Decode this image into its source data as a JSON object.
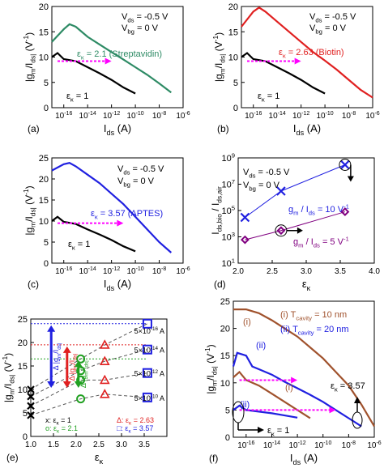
{
  "chart_data": [
    {
      "id": "a",
      "type": "line",
      "panel_label": "(a)",
      "xlabel": "I_ds (A)",
      "ylabel": "|g_m/I_ds| (V^-1)",
      "xscale": "log",
      "xlim": [
        1e-17,
        1e-06
      ],
      "ylim": [
        0,
        20
      ],
      "xticks": [
        "10^-16",
        "10^-14",
        "10^-12",
        "10^-10",
        "10^-8",
        "10^-6"
      ],
      "yticks": [
        "0",
        "5",
        "10",
        "15",
        "20"
      ],
      "annotations": [
        "V_ds = -0.5 V",
        "V_bg = 0 V"
      ],
      "series": [
        {
          "name": "ε_κ = 2.1 (Streptavidin)",
          "color": "#2e8b65",
          "x": [
            1e-17,
            1e-16,
            3e-16,
            1e-15,
            1e-14,
            1e-13,
            1e-12,
            1e-11,
            1e-10,
            1e-09,
            1e-08,
            1e-07
          ],
          "y": [
            13,
            15.5,
            16.5,
            16,
            14,
            12.5,
            11,
            9.5,
            8,
            6.5,
            4.8,
            3
          ]
        },
        {
          "name": "ε_κ = 1",
          "color": "#000000",
          "x": [
            1e-17,
            3e-17,
            1e-16,
            1e-15,
            1e-14,
            1e-13,
            1e-12,
            1e-11,
            1e-10
          ],
          "y": [
            10,
            10.8,
            9.6,
            9.2,
            8,
            6.8,
            5.5,
            4,
            2.8
          ]
        }
      ],
      "arrow": {
        "color": "#ff00ff",
        "x": [
          3e-17,
          1e-12
        ],
        "y": [
          9.2,
          9.2
        ]
      }
    },
    {
      "id": "b",
      "type": "line",
      "panel_label": "(b)",
      "xlabel": "I_ds (A)",
      "ylabel": "|g_m/I_ds| (V^-1)",
      "xscale": "log",
      "xlim": [
        1e-17,
        1e-06
      ],
      "ylim": [
        0,
        20
      ],
      "xticks": [
        "10^-16",
        "10^-14",
        "10^-12",
        "10^-10",
        "10^-8",
        "10^-6"
      ],
      "yticks": [
        "0",
        "5",
        "10",
        "15",
        "20"
      ],
      "annotations": [
        "V_ds = -0.5 V",
        "V_bg = 0 V"
      ],
      "series": [
        {
          "name": "ε_κ = 2.63 (Biotin)",
          "color": "#e02020",
          "x": [
            1e-17,
            1e-16,
            3e-16,
            1e-15,
            1e-14,
            1e-13,
            1e-12,
            1e-11,
            1e-10,
            1e-09,
            1e-08,
            1e-07,
            1e-06
          ],
          "y": [
            16,
            19,
            19.8,
            19,
            17,
            15,
            13,
            11,
            9.3,
            7.5,
            5.5,
            3.5,
            2
          ]
        },
        {
          "name": "ε_κ = 1",
          "color": "#000000",
          "x": [
            1e-17,
            3e-17,
            1e-16,
            1e-15,
            1e-14,
            1e-13,
            1e-12,
            1e-11,
            1e-10
          ],
          "y": [
            10,
            10.8,
            9.6,
            9.2,
            8,
            6.8,
            5.5,
            4,
            2.8
          ]
        }
      ],
      "arrow": {
        "color": "#ff00ff",
        "x": [
          3e-17,
          1e-12
        ],
        "y": [
          9.2,
          9.2
        ]
      }
    },
    {
      "id": "c",
      "type": "line",
      "panel_label": "(c)",
      "xlabel": "I_ds (A)",
      "ylabel": "|g_m/I_ds| (V^-1)",
      "xscale": "log",
      "xlim": [
        1e-17,
        1e-06
      ],
      "ylim": [
        0,
        25
      ],
      "xticks": [
        "10^-16",
        "10^-14",
        "10^-12",
        "10^-10",
        "10^-8",
        "10^-6"
      ],
      "yticks": [
        "0",
        "5",
        "10",
        "15",
        "20",
        "25"
      ],
      "annotations": [
        "V_ds = -0.5 V",
        "V_bg = 0 V"
      ],
      "series": [
        {
          "name": "ε_κ = 3.57 (APTES)",
          "color": "#2020e0",
          "x": [
            1e-17,
            1e-16,
            3e-16,
            1e-15,
            1e-14,
            1e-13,
            1e-12,
            1e-11,
            1e-10,
            1e-09,
            1e-08,
            1e-07
          ],
          "y": [
            22,
            23.5,
            23.8,
            23,
            21,
            19,
            16.5,
            14,
            11,
            8,
            5,
            2.5
          ]
        },
        {
          "name": "ε_κ = 1",
          "color": "#000000",
          "x": [
            1e-17,
            3e-17,
            1e-16,
            1e-15,
            1e-14,
            1e-13,
            1e-12,
            1e-11,
            1e-10
          ],
          "y": [
            10,
            11,
            9.8,
            9.3,
            8,
            6.8,
            5.5,
            4,
            2.8
          ]
        }
      ],
      "arrow": {
        "color": "#ff00ff",
        "x": [
          3e-17,
          1e-11
        ],
        "y": [
          9.5,
          9.5
        ]
      }
    },
    {
      "id": "d",
      "type": "scatter",
      "panel_label": "(d)",
      "xlabel": "ε_κ",
      "ylabel": "I_ds,bio / I_ds,air",
      "yscale": "log",
      "xlim": [
        2.0,
        4.0
      ],
      "ylim": [
        10.0,
        1000000000.0
      ],
      "xticks": [
        "2.0",
        "2.5",
        "3.0",
        "3.5",
        "4.0"
      ],
      "yticks": [
        "10^1",
        "10^3",
        "10^5",
        "10^7",
        "10^9"
      ],
      "annotations": [
        "V_ds = -0.5 V",
        "V_bg = 0 V"
      ],
      "series": [
        {
          "name": "g_m / I_ds = 10 V^-1",
          "color": "#2020e0",
          "marker": "x",
          "x": [
            2.1,
            2.63,
            3.57
          ],
          "y": [
            30000.0,
            3000000.0,
            300000000.0
          ]
        },
        {
          "name": "g_m / I_ds = 5 V^-1",
          "color": "#800080",
          "marker": "diamond",
          "x": [
            2.1,
            2.63,
            3.57
          ],
          "y": [
            600.0,
            3000.0,
            80000.0
          ]
        }
      ]
    },
    {
      "id": "e",
      "type": "scatter",
      "panel_label": "(e)",
      "xlabel": "ε_κ",
      "ylabel": "|g_m/I_ds| (V^-1)",
      "xlim": [
        1.0,
        4.0
      ],
      "ylim": [
        0,
        25
      ],
      "xticks": [
        "1.0",
        "1.5",
        "2.0",
        "2.5",
        "3.0",
        "3.5"
      ],
      "yticks": [
        "0",
        "5",
        "10",
        "15",
        "20",
        "25"
      ],
      "current_labels": [
        "5×10^-16 A",
        "5×10^-14 A",
        "5×10^-12 A",
        "5×10^-10 A"
      ],
      "delta_labels": [
        "Δ |g_m/I_ds|",
        "Δ |g_m/I_ds|",
        "Δ |g_m/I_ds|"
      ],
      "legend": [
        "x: ε_κ = 1",
        "o: ε_κ = 2.1",
        "Δ: ε_κ = 2.63",
        "□: ε_κ = 3.57"
      ],
      "series": [
        {
          "name": "ε_κ = 1",
          "color": "#000000",
          "marker": "x",
          "x": [
            1,
            1,
            1,
            1
          ],
          "y": [
            10,
            8.5,
            6.5,
            4.5
          ]
        },
        {
          "name": "ε_κ = 2.1",
          "color": "#20a020",
          "marker": "circle",
          "x": [
            2.1,
            2.1,
            2.1,
            2.1
          ],
          "y": [
            16.5,
            14,
            12,
            8
          ]
        },
        {
          "name": "ε_κ = 2.63",
          "color": "#e02020",
          "marker": "triangle",
          "x": [
            2.63,
            2.63,
            2.63,
            2.63
          ],
          "y": [
            19.5,
            16,
            12,
            9
          ]
        },
        {
          "name": "ε_κ = 3.57",
          "color": "#2020e0",
          "marker": "square",
          "x": [
            3.57,
            3.57,
            3.57,
            3.57
          ],
          "y": [
            24,
            18.5,
            13.5,
            8.3
          ]
        }
      ]
    },
    {
      "id": "f",
      "type": "line",
      "panel_label": "(f)",
      "xlabel": "I_ds (A)",
      "ylabel": "|g_m/I_ds| (V^-1)",
      "xscale": "log",
      "xlim": [
        1e-17,
        1e-06
      ],
      "ylim": [
        0,
        25
      ],
      "xticks": [
        "10^-16",
        "10^-14",
        "10^-12",
        "10^-10",
        "10^-8",
        "10^-6"
      ],
      "yticks": [
        "0",
        "5",
        "10",
        "15",
        "20",
        "25"
      ],
      "annotations": [
        "(i) T_cavity = 10 nm",
        "(ii) T_cavity = 20 nm"
      ],
      "series": [
        {
          "name": "(i) ε_κ = 3.57",
          "color": "#a0522d",
          "x": [
            1e-17,
            1e-16,
            1e-15,
            1e-14,
            1e-13,
            1e-12,
            1e-11,
            1e-10,
            1e-09,
            1e-08,
            1e-07,
            1e-06
          ],
          "y": [
            23.5,
            23.5,
            22.8,
            21.5,
            20,
            18.5,
            16.5,
            14.5,
            12,
            9.5,
            6,
            2
          ]
        },
        {
          "name": "(ii) ε_κ = 3.57",
          "color": "#2020e0",
          "x": [
            1e-17,
            2e-17,
            1e-16,
            3e-16,
            1e-15,
            1e-14,
            1e-13,
            1e-12,
            1e-11,
            1e-10,
            1e-09,
            1e-08,
            1e-07
          ],
          "y": [
            13,
            15.5,
            15,
            13,
            12.5,
            11.5,
            10.2,
            9,
            7.8,
            6.5,
            5,
            3.5,
            2
          ]
        },
        {
          "name": "(i) ε_κ = 1",
          "color": "#a0522d",
          "x": [
            1e-17,
            3e-17,
            1e-16,
            1e-15,
            1e-14,
            1e-13,
            1e-12,
            1e-11
          ],
          "y": [
            11,
            12,
            10.5,
            9.5,
            8,
            6.5,
            5,
            3.5
          ]
        },
        {
          "name": "(ii) ε_κ = 1",
          "color": "#2020e0",
          "x": [
            1e-17,
            3e-17,
            1e-16,
            1e-15,
            1e-14,
            1e-13,
            1e-12
          ],
          "y": [
            5,
            5.8,
            5,
            4.7,
            4.4,
            4,
            3.6
          ]
        }
      ],
      "curve_labels": [
        "(i)",
        "(ii)",
        "(i)",
        "(ii)",
        "ε_κ = 3.57",
        "ε_κ = 1"
      ],
      "arrows": [
        {
          "color": "#ff00ff",
          "x": [
            3e-17,
            1e-12
          ],
          "y": [
            10.5,
            10.5
          ]
        },
        {
          "color": "#ff00ff",
          "x": [
            3e-17,
            1e-09
          ],
          "y": [
            5,
            5
          ]
        }
      ]
    }
  ],
  "panel_a": {
    "vds": "V",
    "vds_val": "ds",
    "eq": "= -0.5 V",
    "vbg_val": "bg",
    "eq2": "= 0 V"
  }
}
